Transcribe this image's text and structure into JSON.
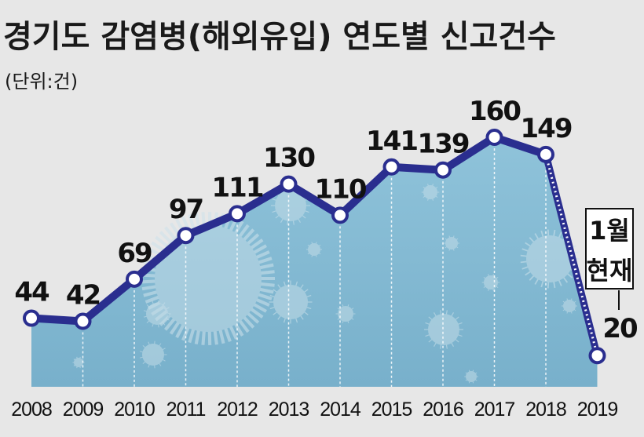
{
  "chart_data": {
    "type": "line",
    "title": "경기도 감염병(해외유입) 연도별 신고건수",
    "subtitle": "(단위:건)",
    "categories": [
      "2008",
      "2009",
      "2010",
      "2011",
      "2012",
      "2013",
      "2014",
      "2015",
      "2016",
      "2017",
      "2018",
      "2019"
    ],
    "values": [
      44,
      42,
      69,
      97,
      111,
      130,
      110,
      141,
      139,
      160,
      149,
      20
    ],
    "data_labels": [
      "44",
      "42",
      "69",
      "97",
      "111",
      "130",
      "110",
      "141",
      "139",
      "160",
      "149",
      "20"
    ],
    "annotation": {
      "line1": "1월",
      "line2": "현재"
    },
    "ylim": [
      0,
      180
    ],
    "last_segment_style": "dotted",
    "grid": false,
    "colors": {
      "line": "#2a2e8f",
      "area": "#8bc0d8",
      "marker_fill": "#ffffff",
      "background": "#e7e7e7"
    }
  }
}
